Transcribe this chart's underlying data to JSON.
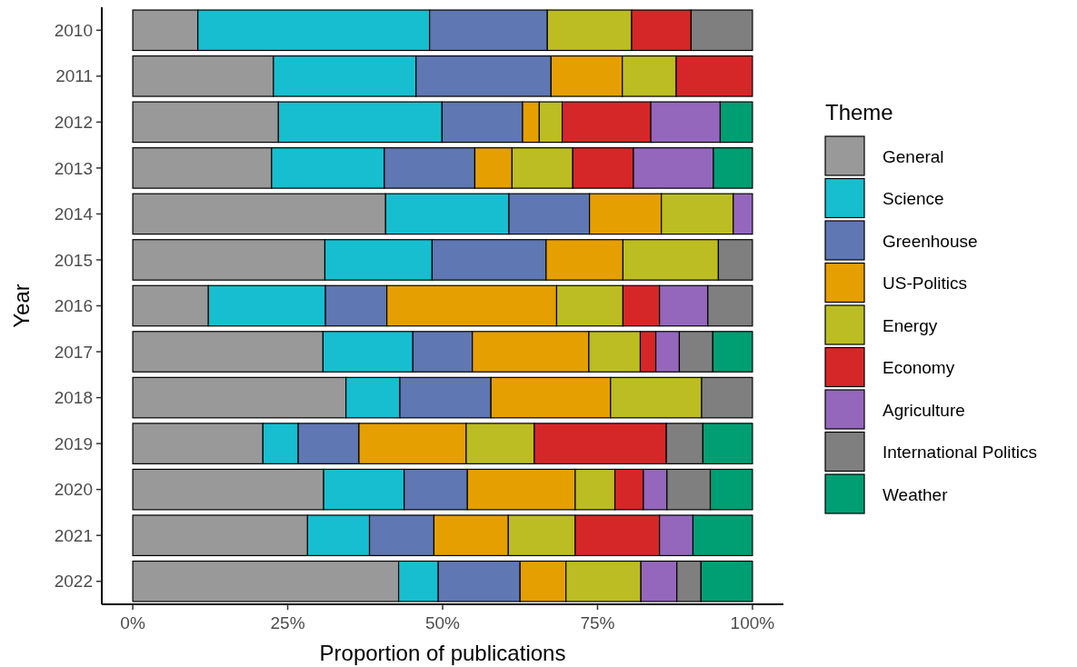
{
  "chart_data": {
    "type": "bar",
    "orientation": "horizontal",
    "stacked": true,
    "xlabel": "Proportion of publications",
    "ylabel": "Year",
    "legend_title": "Theme",
    "legend": "right",
    "grid": false,
    "categories": [
      "2010",
      "2011",
      "2012",
      "2013",
      "2014",
      "2015",
      "2016",
      "2017",
      "2018",
      "2019",
      "2020",
      "2021",
      "2022"
    ],
    "xlim": [
      -5,
      105
    ],
    "xticks": [
      {
        "value": 0,
        "label": "0%"
      },
      {
        "value": 25,
        "label": "25%"
      },
      {
        "value": 50,
        "label": "50%"
      },
      {
        "value": 75,
        "label": "75%"
      },
      {
        "value": 100,
        "label": "100%"
      }
    ],
    "series": [
      {
        "name": "General",
        "color": "#999999",
        "values": [
          10.5,
          22.7,
          23.5,
          22.4,
          40.8,
          31.0,
          12.2,
          30.7,
          34.4,
          21.0,
          30.8,
          28.2,
          42.9
        ]
      },
      {
        "name": "Science",
        "color": "#17becf",
        "values": [
          37.4,
          23.0,
          26.4,
          18.2,
          19.9,
          17.3,
          18.9,
          14.5,
          8.7,
          5.7,
          13.0,
          10.0,
          6.4
        ]
      },
      {
        "name": "Greenhouse",
        "color": "#5f77b2",
        "values": [
          19.0,
          21.8,
          13.0,
          14.6,
          13.0,
          18.4,
          9.9,
          9.6,
          14.7,
          9.8,
          10.2,
          10.4,
          13.2
        ]
      },
      {
        "name": "US-Politics",
        "color": "#e69f00",
        "values": [
          null,
          11.5,
          2.7,
          6.0,
          11.6,
          12.4,
          27.4,
          18.8,
          19.3,
          17.3,
          17.4,
          12.0,
          7.4
        ]
      },
      {
        "name": "Energy",
        "color": "#bcbd22",
        "values": [
          13.6,
          8.7,
          3.7,
          9.8,
          11.6,
          15.4,
          10.7,
          8.3,
          14.7,
          11.0,
          6.4,
          10.8,
          12.1
        ]
      },
      {
        "name": "Economy",
        "color": "#d62728",
        "values": [
          9.6,
          12.3,
          14.3,
          9.8,
          null,
          null,
          5.9,
          2.5,
          null,
          21.3,
          4.6,
          13.6,
          null
        ]
      },
      {
        "name": "Agriculture",
        "color": "#9467bd",
        "values": [
          null,
          null,
          11.2,
          12.9,
          3.1,
          null,
          7.8,
          3.8,
          null,
          null,
          3.8,
          5.4,
          5.8
        ]
      },
      {
        "name": "International Politics",
        "color": "#7f7f7f",
        "values": [
          9.9,
          null,
          null,
          null,
          null,
          5.5,
          7.2,
          5.4,
          8.2,
          5.9,
          7.0,
          null,
          3.9
        ]
      },
      {
        "name": "Weather",
        "color": "#009e73",
        "values": [
          null,
          null,
          5.2,
          6.3,
          null,
          null,
          null,
          6.4,
          null,
          8.0,
          6.8,
          9.6,
          8.3
        ]
      }
    ]
  }
}
